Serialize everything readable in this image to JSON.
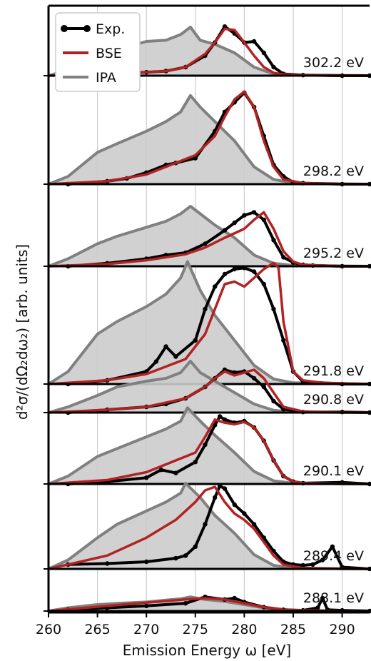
{
  "chart_data": {
    "type": "line",
    "xlabel": "Emission Energy ω [eV]",
    "ylabel": "d²σ/(dΩ₂dω₂) [arb. units]",
    "xlim": [
      260,
      292.8
    ],
    "xticks": [
      260,
      265,
      270,
      275,
      280,
      285,
      290
    ],
    "grid": "vertical",
    "legend": {
      "placement": "top-left",
      "entries": [
        {
          "label": "Exp.",
          "color": "#000000",
          "marker": "circle"
        },
        {
          "label": "BSE",
          "color": "#b22222"
        },
        {
          "label": "IPA",
          "color": "#808080"
        }
      ]
    },
    "colors": {
      "exp": "#000000",
      "bse": "#b22222",
      "ipa": "#808080",
      "ipa_fill": "#cccccc",
      "grid": "#cccccc"
    },
    "spectra": [
      {
        "excitation_label": "302.2 eV",
        "exp": {
          "x": [
            262,
            266,
            270,
            272,
            274,
            276,
            277,
            278,
            279,
            280,
            281,
            282,
            283,
            284,
            286,
            290,
            292.8
          ],
          "y": [
            0,
            0.03,
            0.06,
            0.08,
            0.15,
            0.35,
            0.58,
            0.86,
            0.74,
            0.58,
            0.6,
            0.4,
            0.15,
            0.03,
            0.01,
            0,
            0
          ]
        },
        "bse": {
          "x": [
            260,
            266,
            270,
            272,
            274,
            276,
            277,
            278,
            279,
            280,
            281,
            282,
            283,
            284,
            286,
            290,
            292.8
          ],
          "y": [
            0,
            0.03,
            0.06,
            0.08,
            0.15,
            0.38,
            0.58,
            0.82,
            0.8,
            0.58,
            0.35,
            0.15,
            0.05,
            0.02,
            0.01,
            0,
            0
          ]
        },
        "ipa": {
          "x": [
            260,
            262,
            265,
            267,
            270,
            272,
            273.5,
            274.5,
            275.5,
            277,
            279,
            281,
            283,
            285,
            292.8
          ],
          "y": [
            0,
            0.1,
            0.28,
            0.45,
            0.6,
            0.62,
            0.72,
            0.85,
            0.62,
            0.55,
            0.4,
            0.15,
            0.03,
            0.01,
            0
          ]
        }
      },
      {
        "excitation_label": "298.2 eV",
        "exp": {
          "x": [
            262,
            266,
            268,
            270,
            272,
            273,
            275,
            277,
            278,
            279,
            280,
            281,
            282,
            283,
            284,
            285,
            286,
            290,
            292.8
          ],
          "y": [
            0,
            0.03,
            0.06,
            0.12,
            0.2,
            0.22,
            0.27,
            0.55,
            0.75,
            0.85,
            0.95,
            0.8,
            0.5,
            0.2,
            0.08,
            0.02,
            0.01,
            0,
            0
          ]
        },
        "bse": {
          "x": [
            260,
            266,
            270,
            273,
            275,
            277,
            278,
            279,
            280,
            281,
            282,
            283,
            284,
            286,
            290,
            292.8
          ],
          "y": [
            0,
            0.03,
            0.1,
            0.22,
            0.3,
            0.5,
            0.7,
            0.88,
            0.96,
            0.8,
            0.45,
            0.18,
            0.05,
            0.01,
            0,
            0
          ]
        },
        "ipa": {
          "x": [
            260,
            262,
            265,
            267,
            270,
            272,
            273.5,
            274.5,
            275.5,
            277,
            279,
            281,
            283,
            285,
            292.8
          ],
          "y": [
            0,
            0.08,
            0.33,
            0.42,
            0.55,
            0.65,
            0.75,
            0.92,
            0.8,
            0.65,
            0.45,
            0.18,
            0.05,
            0.01,
            0
          ]
        }
      },
      {
        "excitation_label": "295.2 eV",
        "exp": {
          "x": [
            262,
            266,
            270,
            272,
            274,
            276,
            278,
            279,
            280,
            281,
            282,
            283,
            284,
            285,
            286,
            287,
            290,
            292.8
          ],
          "y": [
            0,
            0.04,
            0.1,
            0.15,
            0.18,
            0.3,
            0.48,
            0.58,
            0.68,
            0.72,
            0.62,
            0.35,
            0.12,
            0.05,
            0.02,
            0.01,
            0,
            0
          ]
        },
        "bse": {
          "x": [
            260,
            266,
            270,
            274,
            276,
            278,
            280,
            281,
            282,
            283,
            284,
            285,
            286,
            290,
            292.8
          ],
          "y": [
            0,
            0.03,
            0.08,
            0.16,
            0.25,
            0.38,
            0.5,
            0.62,
            0.72,
            0.5,
            0.2,
            0.06,
            0.02,
            0,
            0
          ]
        },
        "ipa": {
          "x": [
            260,
            262,
            265,
            267,
            270,
            272,
            273.5,
            274.5,
            275.5,
            277,
            279,
            281,
            283,
            285,
            292.8
          ],
          "y": [
            0,
            0.1,
            0.3,
            0.4,
            0.52,
            0.6,
            0.7,
            0.8,
            0.7,
            0.55,
            0.38,
            0.15,
            0.04,
            0.01,
            0
          ]
        }
      },
      {
        "excitation_label": "291.8 eV",
        "exp": {
          "x": [
            262,
            266,
            270,
            271,
            272,
            273,
            275,
            276,
            277,
            278,
            279,
            280,
            281,
            282,
            283,
            284,
            285,
            286,
            290,
            292.8
          ],
          "y": [
            0,
            0.03,
            0.1,
            0.18,
            0.3,
            0.22,
            0.35,
            0.6,
            0.78,
            0.88,
            0.92,
            0.93,
            0.9,
            0.8,
            0.6,
            0.35,
            0.1,
            0.02,
            0,
            0
          ]
        },
        "bse": {
          "x": [
            260,
            266,
            270,
            274,
            276,
            277,
            278,
            279,
            280,
            281,
            282,
            283,
            283.5,
            284,
            285,
            286,
            288,
            292.8
          ],
          "y": [
            0,
            0.03,
            0.08,
            0.2,
            0.4,
            0.6,
            0.8,
            0.82,
            0.78,
            0.85,
            0.92,
            0.97,
            0.93,
            0.5,
            0.1,
            0.03,
            0.01,
            0
          ]
        },
        "ipa": {
          "x": [
            260,
            262,
            265,
            267,
            270,
            272,
            273.5,
            274.2,
            275.5,
            277,
            279,
            281,
            283,
            285,
            292.8
          ],
          "y": [
            0,
            0.1,
            0.4,
            0.5,
            0.62,
            0.72,
            0.85,
            0.98,
            0.75,
            0.55,
            0.35,
            0.15,
            0.04,
            0.01,
            0
          ]
        }
      },
      {
        "excitation_label": "290.8 eV",
        "exp": {
          "x": [
            262,
            266,
            270,
            272,
            274,
            276,
            277,
            278,
            279,
            280,
            281,
            282,
            283,
            284,
            286,
            290,
            292.8
          ],
          "y": [
            0,
            0.05,
            0.1,
            0.15,
            0.25,
            0.45,
            0.6,
            0.75,
            0.7,
            0.72,
            0.6,
            0.45,
            0.2,
            0.06,
            0.01,
            0.01,
            0
          ]
        },
        "bse": {
          "x": [
            260,
            266,
            270,
            274,
            276,
            277,
            278,
            279,
            280,
            281,
            282,
            283,
            284,
            286,
            290,
            292.8
          ],
          "y": [
            0,
            0.05,
            0.1,
            0.25,
            0.45,
            0.6,
            0.72,
            0.65,
            0.7,
            0.75,
            0.6,
            0.35,
            0.1,
            0.02,
            0,
            0
          ]
        },
        "ipa": {
          "x": [
            260,
            262,
            265,
            267,
            270,
            272,
            273.5,
            274.5,
            275.5,
            277,
            279,
            281,
            283,
            285,
            292.8
          ],
          "y": [
            0,
            0.1,
            0.3,
            0.45,
            0.55,
            0.6,
            0.7,
            0.9,
            0.7,
            0.55,
            0.35,
            0.15,
            0.04,
            0.01,
            0
          ]
        }
      },
      {
        "excitation_label": "290.1 eV",
        "exp": {
          "x": [
            262,
            266,
            270,
            271.5,
            273,
            275,
            276,
            277,
            277.5,
            278,
            279,
            280,
            281,
            282,
            283,
            284,
            285,
            286,
            290,
            292.8
          ],
          "y": [
            0,
            0.03,
            0.08,
            0.18,
            0.14,
            0.28,
            0.5,
            0.75,
            0.86,
            0.82,
            0.78,
            0.8,
            0.72,
            0.55,
            0.3,
            0.1,
            0.03,
            0.01,
            0.02,
            0
          ]
        },
        "bse": {
          "x": [
            260,
            266,
            270,
            273,
            275,
            276,
            277,
            278,
            279,
            280,
            281,
            282,
            283,
            284,
            285,
            286,
            290,
            292.8
          ],
          "y": [
            0,
            0.05,
            0.15,
            0.3,
            0.4,
            0.6,
            0.82,
            0.78,
            0.76,
            0.79,
            0.72,
            0.55,
            0.3,
            0.1,
            0.03,
            0.01,
            0,
            0
          ]
        },
        "ipa": {
          "x": [
            260,
            262,
            265,
            267,
            270,
            272,
            273.5,
            274.2,
            275.5,
            277,
            279,
            281,
            283,
            285,
            292.8
          ],
          "y": [
            0,
            0.1,
            0.35,
            0.45,
            0.6,
            0.7,
            0.8,
            0.97,
            0.8,
            0.62,
            0.4,
            0.16,
            0.04,
            0.01,
            0
          ]
        }
      },
      {
        "excitation_label": "289.4 eV",
        "exp": {
          "x": [
            262,
            266,
            270,
            273,
            274,
            275,
            276,
            277,
            277.5,
            278,
            279,
            280,
            281,
            282,
            283,
            284,
            285,
            286,
            287,
            288,
            289,
            290,
            292.8
          ],
          "y": [
            0.05,
            0.06,
            0.08,
            0.12,
            0.15,
            0.25,
            0.5,
            0.8,
            0.93,
            0.9,
            0.72,
            0.62,
            0.5,
            0.35,
            0.2,
            0.08,
            0.05,
            0.04,
            0.05,
            0.1,
            0.25,
            0.02,
            0
          ]
        },
        "bse": {
          "x": [
            260,
            266,
            270,
            273,
            275,
            276,
            277,
            278,
            279,
            280,
            281,
            282,
            283,
            284,
            286,
            290,
            292.8
          ],
          "y": [
            0,
            0.15,
            0.35,
            0.55,
            0.75,
            0.88,
            0.92,
            0.75,
            0.62,
            0.55,
            0.45,
            0.3,
            0.15,
            0.05,
            0.01,
            0,
            0
          ]
        },
        "ipa": {
          "x": [
            260,
            262,
            265,
            267,
            270,
            272,
            273.5,
            274,
            275.5,
            277,
            279,
            281,
            283,
            285,
            292.8
          ],
          "y": [
            0,
            0.1,
            0.35,
            0.5,
            0.65,
            0.75,
            0.85,
            0.96,
            0.8,
            0.6,
            0.4,
            0.16,
            0.04,
            0.01,
            0
          ]
        }
      },
      {
        "excitation_label": "288.1 eV",
        "exp": {
          "x": [
            262,
            266,
            270,
            274,
            276,
            278,
            279,
            280,
            282,
            284,
            286,
            287.5,
            288,
            288.5,
            290,
            292.8
          ],
          "y": [
            0.02,
            0.05,
            0.08,
            0.12,
            0.22,
            0.18,
            0.2,
            0.14,
            0.06,
            0.02,
            0.01,
            0.05,
            0.2,
            0.02,
            0.01,
            0
          ]
        },
        "bse": {
          "x": [
            260,
            266,
            270,
            274,
            276,
            278,
            280,
            282,
            284,
            286,
            290,
            292.8
          ],
          "y": [
            0,
            0.08,
            0.13,
            0.18,
            0.2,
            0.18,
            0.12,
            0.06,
            0.02,
            0.01,
            0,
            0
          ]
        },
        "ipa": {
          "x": [
            260,
            262,
            265,
            267,
            270,
            272,
            273.5,
            274.5,
            276,
            278,
            280,
            282,
            285,
            292.8
          ],
          "y": [
            0,
            0.05,
            0.1,
            0.12,
            0.14,
            0.17,
            0.19,
            0.22,
            0.18,
            0.15,
            0.1,
            0.05,
            0.01,
            0
          ]
        }
      }
    ]
  }
}
